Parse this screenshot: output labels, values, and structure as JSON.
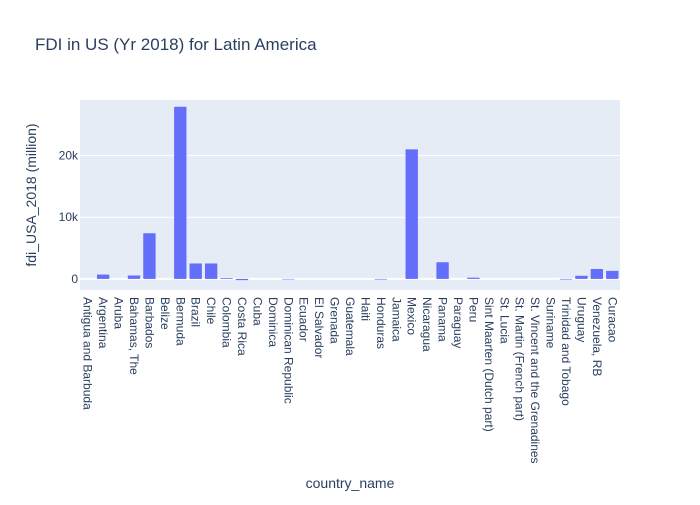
{
  "chart_data": {
    "type": "bar",
    "title": "FDI in US (Yr 2018) for Latin America",
    "xlabel": "country_name",
    "ylabel": "fdi_USA_2018 (million)",
    "ylim": [
      -1800,
      29000
    ],
    "yticks": [
      0,
      10000,
      20000
    ],
    "ytick_labels": [
      "0",
      "10k",
      "20k"
    ],
    "grid": true,
    "legend": "none",
    "bar_color": "#636efa",
    "plot_bg": "#e5ecf6",
    "categories": [
      "Antigua and Barbuda",
      "Argentina",
      "Aruba",
      "Bahamas, The",
      "Barbados",
      "Belize",
      "Bermuda",
      "Brazil",
      "Chile",
      "Colombia",
      "Costa Rica",
      "Cuba",
      "Dominica",
      "Dominican Republic",
      "Ecuador",
      "El Salvador",
      "Grenada",
      "Guatemala",
      "Haiti",
      "Honduras",
      "Jamaica",
      "Mexico",
      "Nicaragua",
      "Panama",
      "Paraguay",
      "Peru",
      "Sint Maarten (Dutch part)",
      "St. Lucia",
      "St. Martin (French part)",
      "St. Vincent and the Grenadines",
      "Suriname",
      "Trinidad and Tobago",
      "Uruguay",
      "Venezuela, RB",
      "Curacao"
    ],
    "values": [
      0,
      700,
      0,
      550,
      7400,
      0,
      27900,
      2500,
      2500,
      120,
      -200,
      0,
      0,
      -80,
      0,
      0,
      0,
      0,
      0,
      -100,
      0,
      21000,
      0,
      2700,
      0,
      200,
      0,
      0,
      0,
      0,
      0,
      -100,
      500,
      1600,
      1300
    ]
  }
}
